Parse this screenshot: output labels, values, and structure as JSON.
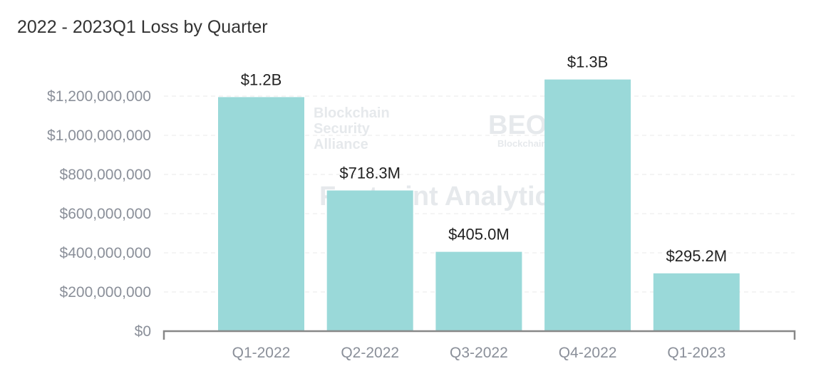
{
  "chart_data": {
    "type": "bar",
    "title": "2022 - 2023Q1 Loss by Quarter",
    "categories": [
      "Q1-2022",
      "Q2-2022",
      "Q3-2022",
      "Q4-2022",
      "Q1-2023"
    ],
    "values": [
      1195000000,
      718300000,
      405000000,
      1285000000,
      295200000
    ],
    "data_labels": [
      "$1.2B",
      "$718.3M",
      "$405.0M",
      "$1.3B",
      "$295.2M"
    ],
    "yticks": [
      0,
      200000000,
      400000000,
      600000000,
      800000000,
      1000000000,
      1200000000
    ],
    "ytick_labels": [
      "$0",
      "$200,000,000",
      "$400,000,000",
      "$600,000,000",
      "$800,000,000",
      "$1,000,000,000",
      "$1,200,000,000"
    ],
    "ylim": [
      0,
      1200000000
    ],
    "grid": "horizontal dashed",
    "bar_color": "#9ad9d9",
    "xlabel": "",
    "ylabel": ""
  },
  "watermarks": [
    "Blockchain Security Alliance",
    "BEOSIN",
    "Blockchain Security",
    "Footprint Analytics"
  ]
}
